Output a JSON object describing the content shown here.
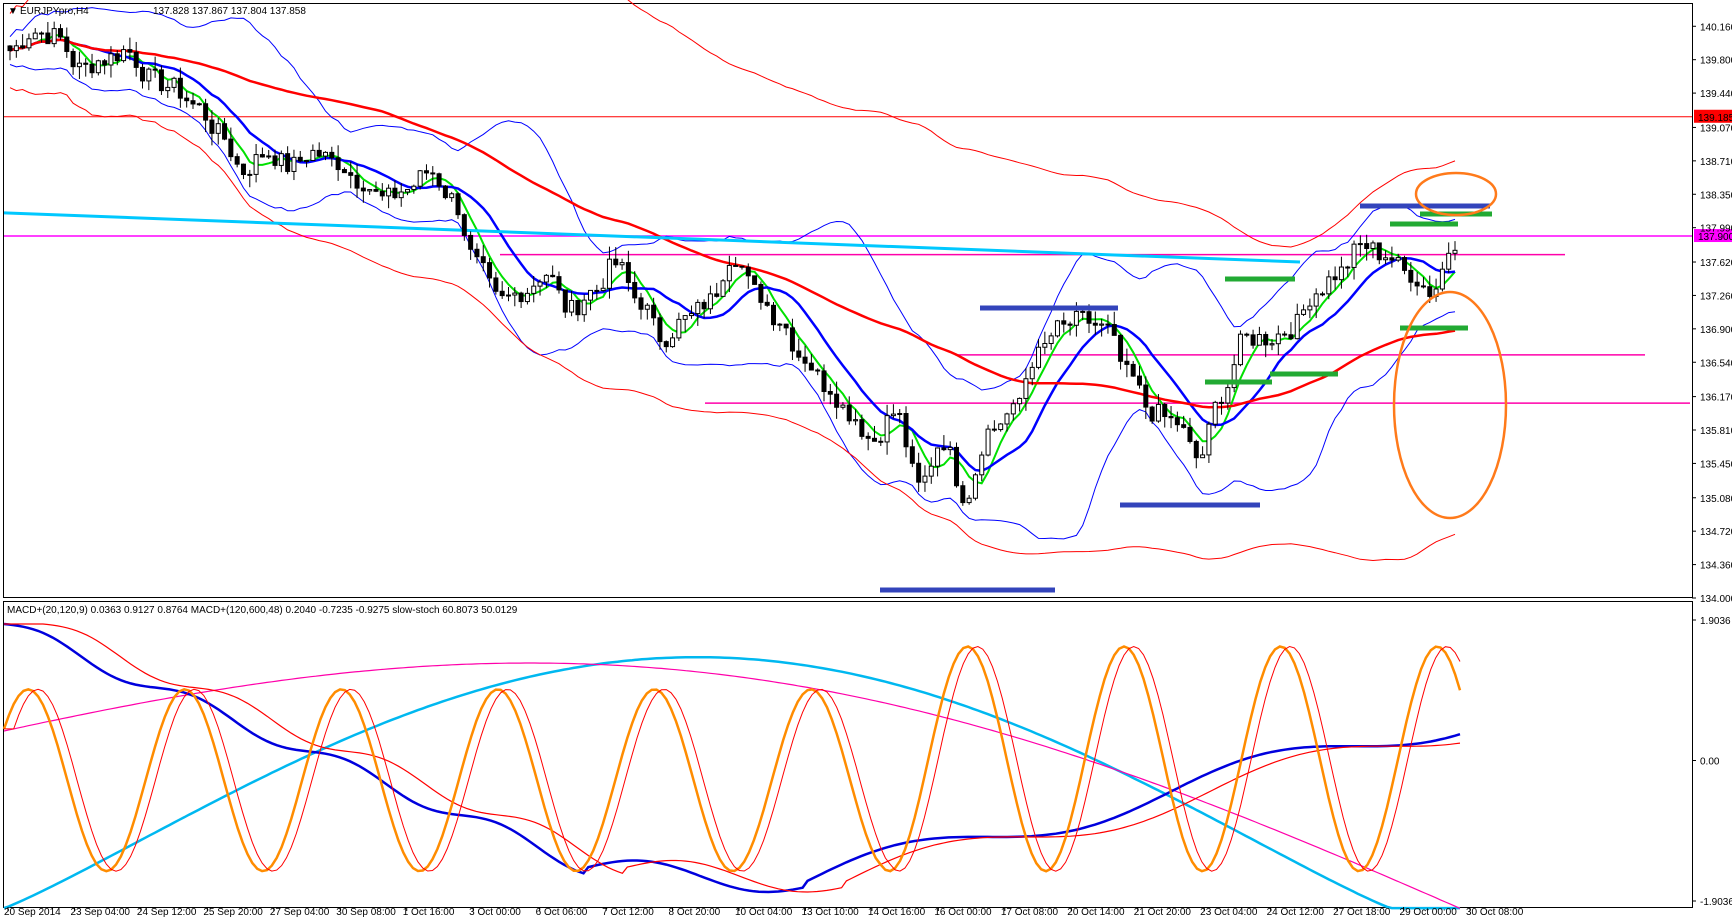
{
  "chart_data": {
    "type": "candlestick",
    "title": "EURJPYpro,H4",
    "quote": "137.828 137.867 137.804 137.858",
    "price_labels": [
      "140.160",
      "139.800",
      "139.440",
      "139.070",
      "138.710",
      "138.350",
      "137.990",
      "137.620",
      "137.260",
      "136.900",
      "136.540",
      "136.170",
      "135.810",
      "135.450",
      "135.080",
      "134.720",
      "134.360",
      "134.000"
    ],
    "price_range": [
      134.0,
      140.4
    ],
    "resistance_tag": {
      "value": 139.185,
      "label": "139.185"
    },
    "current_tag": {
      "value": 137.9,
      "label": "137.900"
    },
    "x_labels": [
      "20 Sep 2014",
      "23 Sep 04:00",
      "24 Sep 12:00",
      "25 Sep 20:00",
      "27 Sep 04:00",
      "30 Sep 08:00",
      "1 Oct 16:00",
      "3 Oct 00:00",
      "6 Oct 06:00",
      "7 Oct 12:00",
      "8 Oct 20:00",
      "10 Oct 04:00",
      "13 Oct 10:00",
      "14 Oct 16:00",
      "16 Oct 00:00",
      "17 Oct 08:00",
      "20 Oct 14:00",
      "21 Oct 20:00",
      "23 Oct 04:00",
      "24 Oct 12:00",
      "27 Oct 18:00",
      "29 Oct 00:00",
      "30 Oct 08:00"
    ],
    "close_path": [
      139.9,
      140.1,
      140.05,
      139.7,
      139.8,
      139.9,
      139.6,
      139.5,
      139.3,
      139.0,
      138.6,
      138.8,
      138.65,
      138.8,
      138.7,
      138.5,
      138.3,
      138.4,
      138.6,
      138.3,
      137.6,
      137.2,
      137.3,
      137.5,
      137.1,
      137.3,
      137.6,
      137.2,
      136.8,
      137.0,
      137.2,
      137.7,
      137.3,
      137.0,
      136.6,
      136.3,
      136.0,
      135.7,
      136.0,
      135.2,
      135.7,
      135.1,
      135.8,
      136.0,
      136.6,
      136.9,
      137.0,
      136.9,
      136.4,
      136.0,
      135.9,
      135.5,
      136.2,
      136.8,
      136.8,
      136.9,
      137.3,
      137.5,
      137.8,
      137.7,
      137.5,
      137.3,
      137.85
    ],
    "horizontal_levels": [
      139.185,
      137.9,
      137.7,
      136.62,
      136.1
    ],
    "macd_panel": {
      "label": "MACD+(20,120,9) 0.0363 0.9127 0.8764  MACD+(120,600,48) 0.2040 -0.7235 -0.9275  slow-stoch 60.8073 50.0129",
      "y_labels": [
        "1.9036",
        "0.00",
        "-1.9036"
      ],
      "y_range": [
        -1.9036,
        1.9036
      ]
    }
  }
}
